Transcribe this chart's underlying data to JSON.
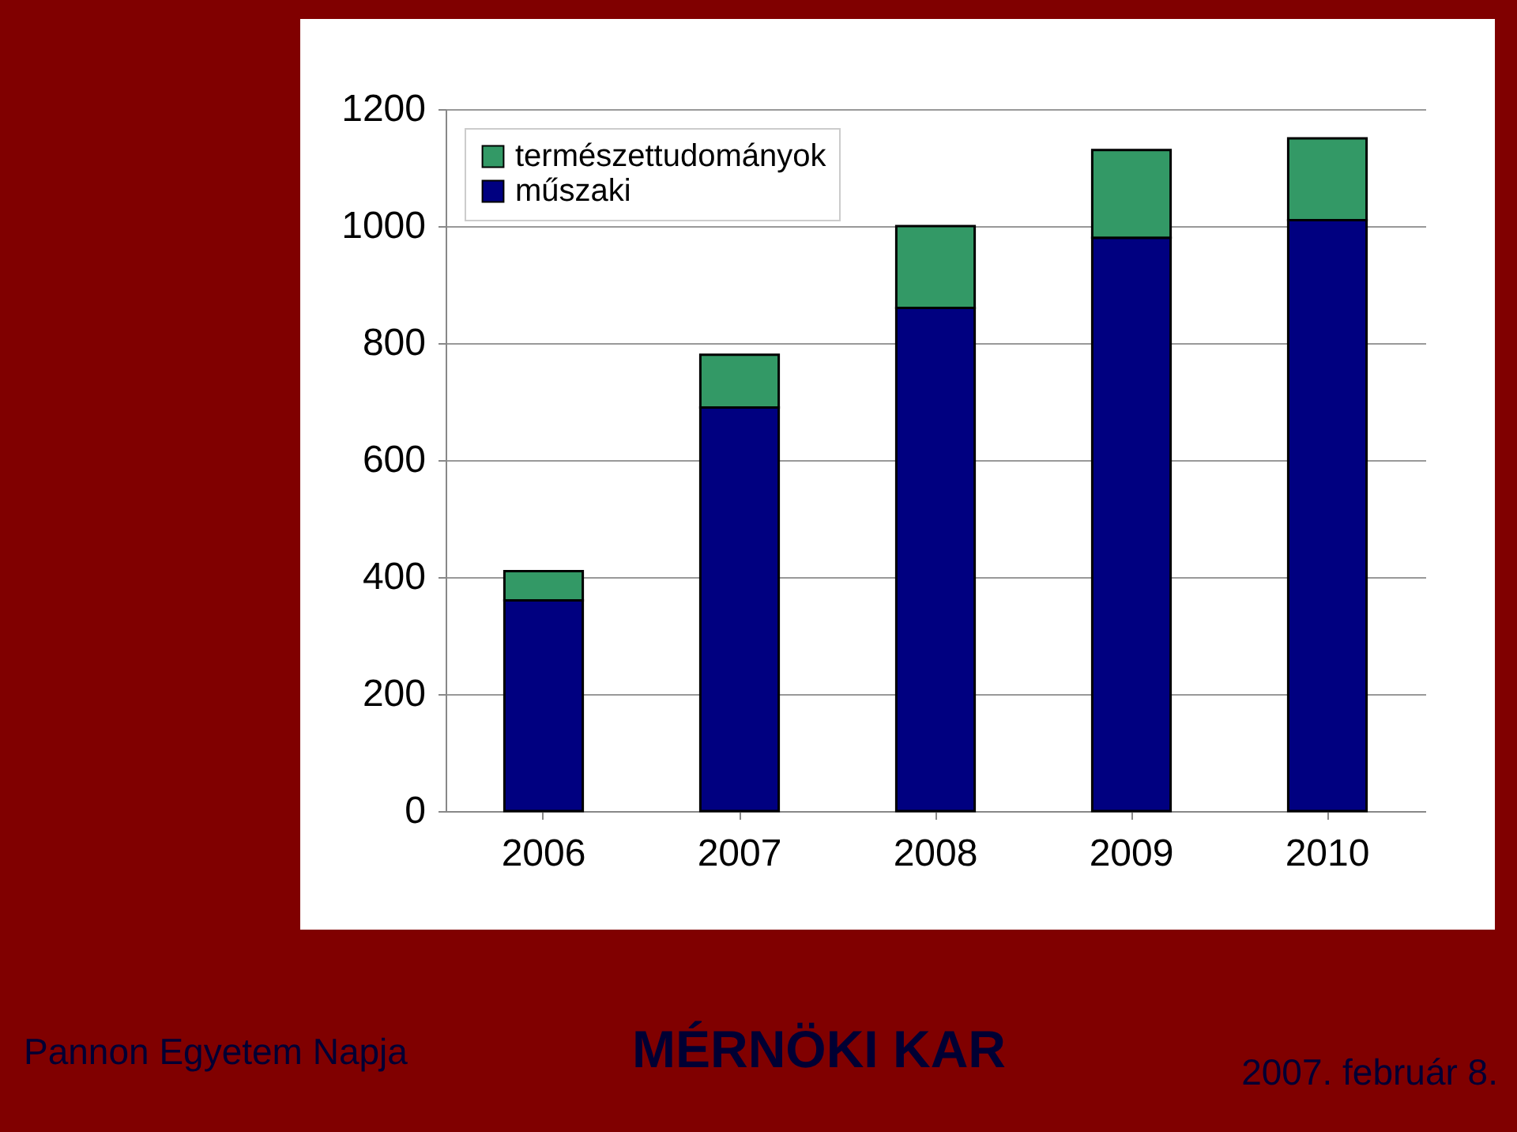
{
  "chart_data": {
    "type": "bar",
    "stacked": true,
    "categories": [
      "2006",
      "2007",
      "2008",
      "2009",
      "2010"
    ],
    "series": [
      {
        "name": "műszaki",
        "color": "#000080",
        "values": [
          360,
          690,
          860,
          980,
          1010
        ]
      },
      {
        "name": "természettudományok",
        "color": "#339966",
        "values": [
          50,
          90,
          140,
          150,
          140
        ]
      }
    ],
    "ylim": [
      0,
      1200
    ],
    "yticks": [
      0,
      200,
      400,
      600,
      800,
      1000,
      1200
    ],
    "grid": "y",
    "legend": "top left",
    "annotations": [
      "Pannon Egyetem Napja",
      "MÉRNÖKI KAR",
      "2007. február 8."
    ]
  }
}
